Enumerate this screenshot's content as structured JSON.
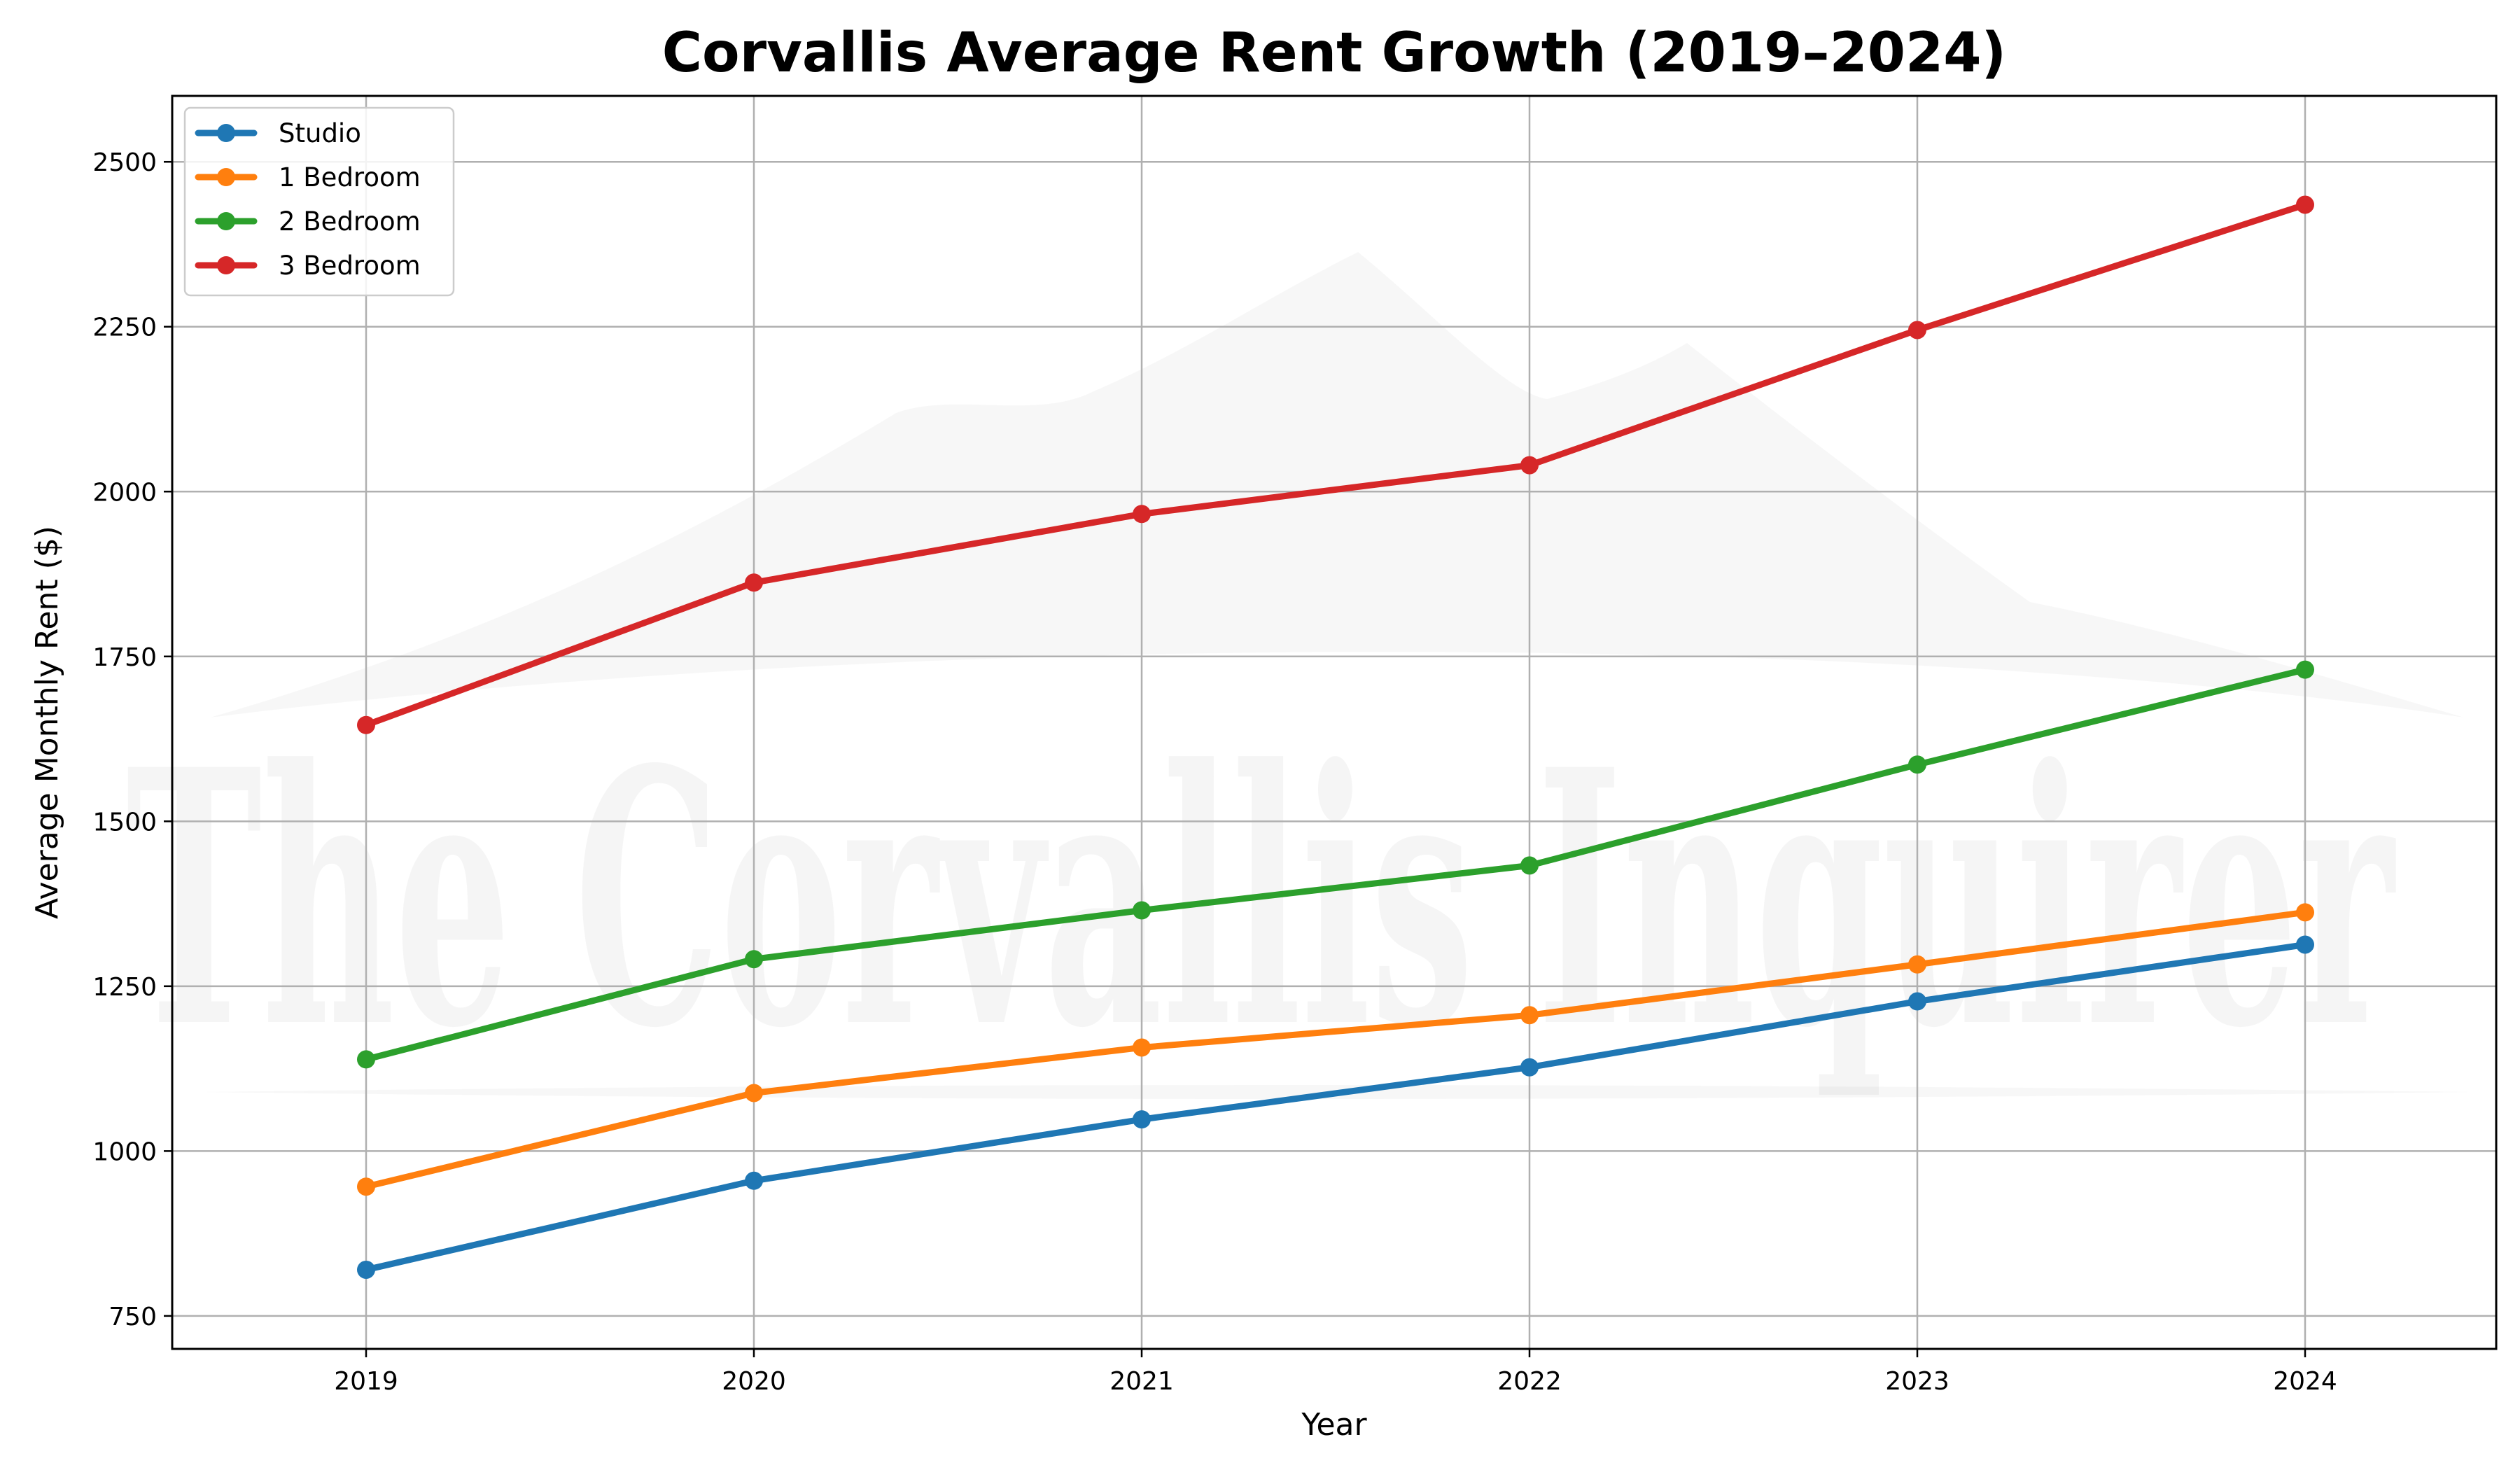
{
  "chart_data": {
    "type": "line",
    "title": "Corvallis Average Rent Growth (2019–2024)",
    "xlabel": "Year",
    "ylabel": "Average Monthly Rent ($)",
    "categories": [
      "2019",
      "2020",
      "2021",
      "2022",
      "2023",
      "2024"
    ],
    "ylim": [
      700,
      2600
    ],
    "yticks": [
      750,
      1000,
      1250,
      1500,
      1750,
      2000,
      2250,
      2500
    ],
    "grid": true,
    "legend_position": "top-left",
    "series": [
      {
        "name": "Studio",
        "color": "#1f77b4",
        "values": [
          820,
          955,
          1048,
          1127,
          1227,
          1313
        ]
      },
      {
        "name": "1 Bedroom",
        "color": "#ff7f0e",
        "values": [
          946,
          1088,
          1157,
          1206,
          1283,
          1362
        ]
      },
      {
        "name": "2 Bedroom",
        "color": "#2ca02c",
        "values": [
          1139,
          1291,
          1365,
          1433,
          1586,
          1730
        ]
      },
      {
        "name": "3 Bedroom",
        "color": "#d62728",
        "values": [
          1646,
          1862,
          1966,
          2040,
          2245,
          2435
        ]
      }
    ],
    "watermark": "The Corvallis Inquirer"
  }
}
